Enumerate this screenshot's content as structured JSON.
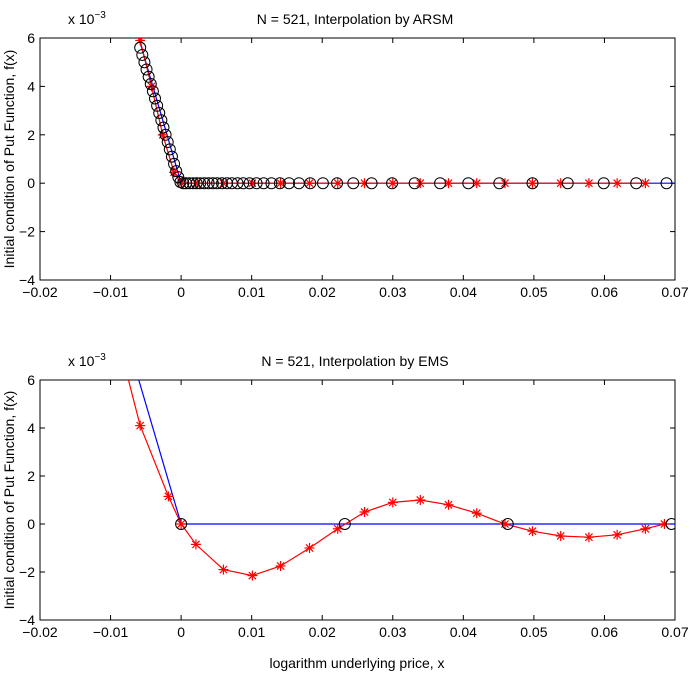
{
  "chart_data": [
    {
      "type": "line",
      "title": "N = 521,  Interpolation by ARSM",
      "xlabel": "",
      "ylabel": "Initial condition of Put Function, f(x)",
      "exponent_label": "x 10",
      "exponent_power": "−3",
      "xlim": [
        -0.02,
        0.07
      ],
      "ylim": [
        -4,
        6
      ],
      "xticks": [
        -0.02,
        -0.01,
        0,
        0.01,
        0.02,
        0.03,
        0.04,
        0.05,
        0.06,
        0.07
      ],
      "xtick_labels": [
        "−0.02",
        "−0.01",
        "0",
        "0.01",
        "0.02",
        "0.03",
        "0.04",
        "0.05",
        "0.06",
        "0.07"
      ],
      "yticks": [
        -4,
        -2,
        0,
        2,
        4,
        6
      ],
      "ytick_labels": [
        "−4",
        "−2",
        "0",
        "2",
        "4",
        "6"
      ],
      "grid": false,
      "colors": {
        "exact": "#0000ff",
        "interp": "#ff0000",
        "nodes": "#000000"
      },
      "series": [
        {
          "style": "blue-line",
          "x": [
            -0.0085,
            0.0,
            0.07
          ],
          "y": [
            8.5,
            0.0,
            0.0
          ]
        },
        {
          "style": "red-line-star",
          "x": [
            -0.0058,
            -0.0042,
            -0.0026,
            -0.001,
            0.0,
            0.0021,
            0.006,
            0.0101,
            0.0141,
            0.0182,
            0.0222,
            0.026,
            0.03,
            0.0339,
            0.0379,
            0.0419,
            0.0459,
            0.0498,
            0.0538,
            0.0578,
            0.0618,
            0.0658
          ],
          "y": [
            5.9,
            4.0,
            2.0,
            0.45,
            0.0,
            0,
            0,
            0,
            0,
            0,
            0,
            0,
            0,
            0,
            0,
            0,
            0,
            0,
            0,
            0,
            0,
            0
          ]
        },
        {
          "style": "black-circle",
          "x": [
            -0.0058,
            -0.0055,
            -0.0052,
            -0.0049,
            -0.0046,
            -0.0043,
            -0.004,
            -0.0037,
            -0.0034,
            -0.0031,
            -0.0028,
            -0.0025,
            -0.0022,
            -0.0019,
            -0.0016,
            -0.0013,
            -0.001,
            -0.0007,
            -0.0004,
            -0.0001,
            0.0003,
            0.0007,
            0.0012,
            0.0017,
            0.0022,
            0.0027,
            0.0033,
            0.0039,
            0.0045,
            0.0051,
            0.0058,
            0.0065,
            0.0072,
            0.008,
            0.0088,
            0.0097,
            0.0107,
            0.0117,
            0.0128,
            0.014,
            0.0153,
            0.0167,
            0.0183,
            0.0201,
            0.0221,
            0.0244,
            0.027,
            0.0299,
            0.0331,
            0.0367,
            0.0407,
            0.0451,
            0.0498,
            0.0548,
            0.0599,
            0.0645,
            0.0688
          ],
          "y": [
            5.6,
            5.3,
            5.0,
            4.7,
            4.4,
            4.1,
            3.8,
            3.5,
            3.2,
            2.9,
            2.6,
            2.3,
            2.0,
            1.7,
            1.4,
            1.1,
            0.8,
            0.5,
            0.25,
            0.05,
            0,
            0,
            0,
            0,
            0,
            0,
            0,
            0,
            0,
            0,
            0,
            0,
            0,
            0,
            0,
            0,
            0,
            0,
            0,
            0,
            0,
            0,
            0,
            0,
            0,
            0,
            0,
            0,
            0,
            0,
            0,
            0,
            0,
            0,
            0,
            0,
            0
          ]
        }
      ]
    },
    {
      "type": "line",
      "title": "N = 521,  Interpolation by EMS",
      "xlabel": "logarithm underlying price, x",
      "ylabel": "Initial condition of Put Function, f(x)",
      "exponent_label": "x 10",
      "exponent_power": "−3",
      "xlim": [
        -0.02,
        0.07
      ],
      "ylim": [
        -4,
        6
      ],
      "xticks": [
        -0.02,
        -0.01,
        0,
        0.01,
        0.02,
        0.03,
        0.04,
        0.05,
        0.06,
        0.07
      ],
      "xtick_labels": [
        "−0.02",
        "−0.01",
        "0",
        "0.01",
        "0.02",
        "0.03",
        "0.04",
        "0.05",
        "0.06",
        "0.07"
      ],
      "yticks": [
        -4,
        -2,
        0,
        2,
        4,
        6
      ],
      "ytick_labels": [
        "−4",
        "−2",
        "0",
        "2",
        "4",
        "6"
      ],
      "grid": false,
      "colors": {
        "exact": "#0000ff",
        "interp": "#ff0000",
        "nodes": "#000000"
      },
      "series": [
        {
          "style": "blue-line",
          "x": [
            -0.0085,
            0.0,
            0.07
          ],
          "y": [
            8.5,
            0.0,
            0.0
          ]
        },
        {
          "style": "red-line-star",
          "x": [
            -0.0079,
            -0.0058,
            -0.0018,
            0.0,
            0.0021,
            0.006,
            0.0101,
            0.0141,
            0.0182,
            0.0222,
            0.026,
            0.03,
            0.0339,
            0.0379,
            0.0419,
            0.0459,
            0.0498,
            0.0538,
            0.0578,
            0.0618,
            0.0658,
            0.0685
          ],
          "y": [
            6.5,
            4.1,
            1.15,
            0.0,
            -0.85,
            -1.9,
            -2.15,
            -1.75,
            -1.0,
            -0.2,
            0.5,
            0.9,
            1.0,
            0.8,
            0.45,
            0.0,
            -0.3,
            -0.5,
            -0.55,
            -0.45,
            -0.2,
            0.0
          ]
        },
        {
          "style": "black-circle",
          "x": [
            0.0,
            0.0232,
            0.0463,
            0.0695
          ],
          "y": [
            0,
            0,
            0,
            0
          ]
        }
      ]
    }
  ]
}
